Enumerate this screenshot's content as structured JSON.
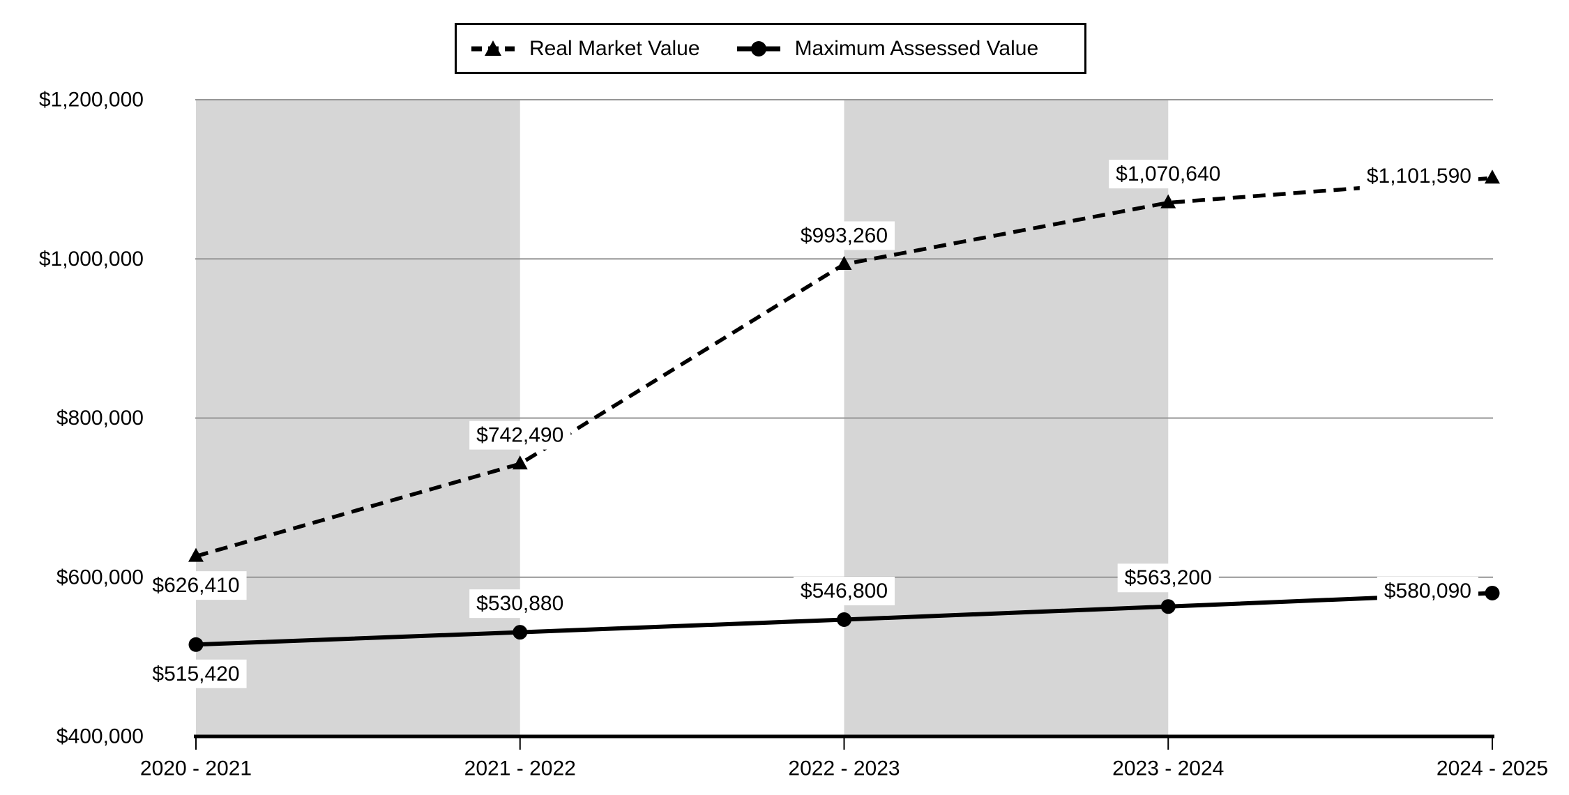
{
  "chart_data": {
    "type": "line",
    "title": "",
    "xlabel": "",
    "ylabel": "",
    "categories": [
      "2020 - 2021",
      "2021 - 2022",
      "2022 - 2023",
      "2023 - 2024",
      "2024 - 2025"
    ],
    "series": [
      {
        "name": "Real Market Value",
        "line_style": "dashed",
        "marker": "triangle",
        "color": "#000000",
        "values": [
          626410,
          742490,
          993260,
          1070640,
          1101590
        ],
        "data_labels": [
          "$626,410",
          "$742,490",
          "$993,260",
          "$1,070,640",
          "$1,101,590"
        ],
        "label_sides": [
          "below",
          "above",
          "above",
          "above",
          "left"
        ]
      },
      {
        "name": "Maximum Assessed Value",
        "line_style": "solid",
        "marker": "circle",
        "color": "#000000",
        "values": [
          515420,
          530880,
          546800,
          563200,
          580090
        ],
        "data_labels": [
          "$515,420",
          "$530,880",
          "$546,800",
          "$563,200",
          "$580,090"
        ],
        "label_sides": [
          "below",
          "above",
          "above",
          "above",
          "left"
        ]
      }
    ],
    "ylim": [
      400000,
      1200000
    ],
    "ytick_step": 200000,
    "ytick_labels": [
      "$400,000",
      "$600,000",
      "$800,000",
      "$1,000,000",
      "$1,200,000"
    ],
    "grid": "horizontal-major",
    "legend_position": "top-center",
    "background_bands": "alternating gray/white vertical bands between category ticks",
    "colors": {
      "band_gray": "#d6d6d6",
      "gridline": "#969696",
      "axis": "#000000",
      "label_background": "#ffffff",
      "background": "#ffffff"
    }
  }
}
